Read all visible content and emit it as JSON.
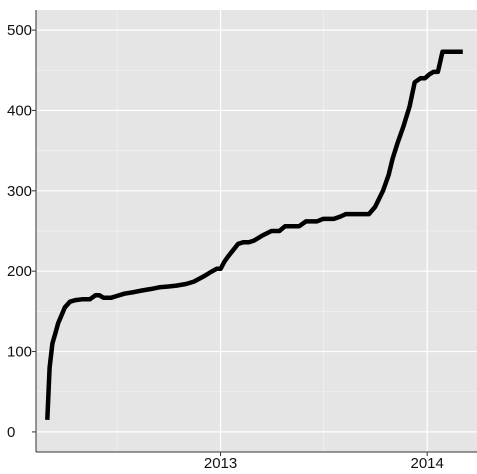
{
  "chart_data": {
    "type": "line",
    "title": "",
    "xlabel": "",
    "ylabel": "",
    "x_tick_labels": [
      "2013",
      "2014"
    ],
    "y_tick_labels": [
      "0",
      "100",
      "200",
      "300",
      "400",
      "500"
    ],
    "xlim": [
      "2012-02-10",
      "2014-03-30"
    ],
    "ylim": [
      -25,
      525
    ],
    "grid": true,
    "legend": "none",
    "colors": {
      "panel_background": "#e5e5e5",
      "grid_major": "#ffffff",
      "grid_minor": "#f1f1f1",
      "line": "#000000",
      "axis": "#333333"
    },
    "series": [
      {
        "x": [
          "2012-03-01",
          "2012-03-05",
          "2012-03-10",
          "2012-03-15",
          "2012-03-20",
          "2012-04-01",
          "2012-04-10",
          "2012-04-20",
          "2012-05-01",
          "2012-05-15",
          "2012-05-25",
          "2012-06-01",
          "2012-06-08",
          "2012-06-15",
          "2012-06-22",
          "2012-07-01",
          "2012-07-15",
          "2012-08-01",
          "2012-08-15",
          "2012-09-01",
          "2012-09-15",
          "2012-10-01",
          "2012-10-15",
          "2012-11-01",
          "2012-11-15",
          "2012-12-01",
          "2012-12-15",
          "2012-12-25",
          "2013-01-01",
          "2013-01-08",
          "2013-01-15",
          "2013-01-22",
          "2013-02-01",
          "2013-02-10",
          "2013-02-20",
          "2013-03-01",
          "2013-03-15",
          "2013-04-01",
          "2013-04-15",
          "2013-04-25",
          "2013-05-01",
          "2013-05-10",
          "2013-05-20",
          "2013-06-01",
          "2013-06-10",
          "2013-06-20",
          "2013-07-01",
          "2013-07-10",
          "2013-07-20",
          "2013-08-01",
          "2013-08-10",
          "2013-08-20",
          "2013-09-01",
          "2013-09-10",
          "2013-09-20",
          "2013-10-01",
          "2013-10-15",
          "2013-10-25",
          "2013-11-01",
          "2013-11-10",
          "2013-11-20",
          "2013-12-01",
          "2013-12-10",
          "2013-12-20",
          "2013-12-28",
          "2014-01-05",
          "2014-01-12",
          "2014-01-20",
          "2014-01-28",
          "2014-02-05",
          "2014-02-12",
          "2014-02-20",
          "2014-02-25",
          "2014-03-01",
          "2014-03-05"
        ],
        "y": [
          15,
          80,
          110,
          122,
          135,
          155,
          162,
          164,
          165,
          165,
          170,
          170,
          167,
          167,
          167,
          169,
          172,
          174,
          176,
          178,
          180,
          181,
          182,
          184,
          187,
          193,
          199,
          203,
          203,
          212,
          219,
          225,
          234,
          236,
          236,
          238,
          244,
          250,
          250,
          256,
          256,
          256,
          256,
          262,
          262,
          262,
          265,
          265,
          265,
          268,
          271,
          271,
          271,
          271,
          271,
          280,
          300,
          320,
          340,
          360,
          380,
          405,
          435,
          440,
          440,
          445,
          448,
          448,
          473,
          473,
          473,
          473,
          473,
          473,
          473
        ]
      }
    ]
  }
}
